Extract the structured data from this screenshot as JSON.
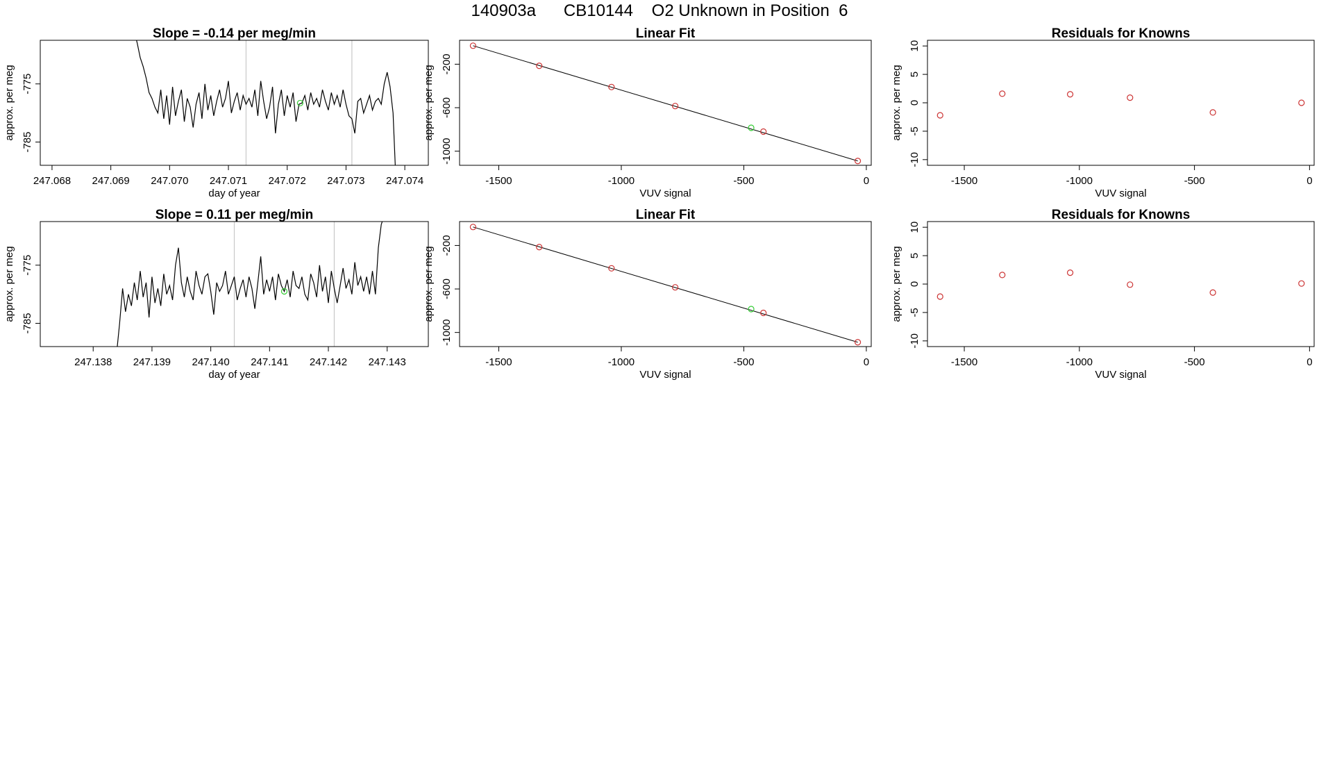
{
  "page": {
    "main_title": "140903a      CB10144    O2 Unknown in Position  6"
  },
  "chart_data": [
    {
      "id": "ts1",
      "type": "line",
      "title": "Slope =  -0.14  per meg/min",
      "xlabel": "day of year",
      "ylabel": "approx. per meg",
      "xlim": [
        247.0678,
        247.0744
      ],
      "ylim": [
        -789.0,
        -767.5
      ],
      "xticks": [
        247.068,
        247.069,
        247.07,
        247.071,
        247.072,
        247.073,
        247.074
      ],
      "xtick_labels": [
        "247.068",
        "247.069",
        "247.070",
        "247.071",
        "247.072",
        "247.073",
        "247.074"
      ],
      "yticks": [
        -785,
        -775
      ],
      "ytick_labels": [
        "-785",
        "-775"
      ],
      "vlines": [
        247.0713,
        247.0731
      ],
      "vline_color": "#c8c8c8",
      "highlight": {
        "x": 247.07222,
        "y": -778.3
      },
      "x": [
        247.0694,
        247.06945,
        247.0695,
        247.06955,
        247.0696,
        247.06965,
        247.0697,
        247.06975,
        247.0698,
        247.06985,
        247.0699,
        247.06995,
        247.07,
        247.07005,
        247.0701,
        247.07015,
        247.0702,
        247.07025,
        247.0703,
        247.07035,
        247.0704,
        247.07045,
        247.0705,
        247.07055,
        247.0706,
        247.07065,
        247.0707,
        247.07075,
        247.0708,
        247.07085,
        247.0709,
        247.07095,
        247.071,
        247.07105,
        247.0711,
        247.07115,
        247.0712,
        247.07125,
        247.0713,
        247.07135,
        247.0714,
        247.07145,
        247.0715,
        247.07155,
        247.0716,
        247.07165,
        247.0717,
        247.07175,
        247.0718,
        247.07185,
        247.0719,
        247.07195,
        247.072,
        247.07205,
        247.0721,
        247.07215,
        247.0722,
        247.07225,
        247.0723,
        247.07235,
        247.0724,
        247.07245,
        247.0725,
        247.07255,
        247.0726,
        247.07265,
        247.0727,
        247.07275,
        247.0728,
        247.07285,
        247.0729,
        247.07295,
        247.073,
        247.07305,
        247.0731,
        247.07315,
        247.0732,
        247.07325,
        247.0733,
        247.07335,
        247.0734,
        247.07345,
        247.0735,
        247.07355,
        247.0736,
        247.07365,
        247.0737,
        247.07375,
        247.0738,
        247.07385
      ],
      "y": [
        -766.0,
        -768.0,
        -770.5,
        -772.0,
        -774.0,
        -776.5,
        -777.5,
        -779.0,
        -780.0,
        -776.0,
        -781.0,
        -777.0,
        -782.0,
        -775.5,
        -780.5,
        -778.0,
        -776.0,
        -781.5,
        -777.5,
        -779.0,
        -782.5,
        -778.5,
        -776.5,
        -781.0,
        -775.0,
        -779.5,
        -777.0,
        -780.5,
        -778.0,
        -776.0,
        -779.0,
        -777.5,
        -774.5,
        -780.0,
        -778.0,
        -776.5,
        -779.5,
        -777.0,
        -778.5,
        -777.5,
        -779.0,
        -776.0,
        -780.5,
        -774.5,
        -778.0,
        -781.0,
        -779.0,
        -775.5,
        -783.5,
        -778.5,
        -776.0,
        -780.5,
        -777.0,
        -779.0,
        -776.5,
        -781.5,
        -778.5,
        -778.3,
        -777.0,
        -779.5,
        -776.5,
        -778.5,
        -777.5,
        -779.0,
        -776.0,
        -778.0,
        -779.5,
        -776.5,
        -778.5,
        -777.0,
        -779.0,
        -776.0,
        -778.5,
        -780.5,
        -781.0,
        -783.5,
        -778.0,
        -777.5,
        -780.0,
        -778.5,
        -777.0,
        -779.5,
        -778.0,
        -777.5,
        -778.5,
        -775.0,
        -773.0,
        -775.5,
        -780.0,
        -792.0
      ]
    },
    {
      "id": "fit1",
      "type": "scatter",
      "title": "Linear Fit",
      "xlabel": "VUV signal",
      "ylabel": "approx. per meg",
      "xlim": [
        -1660,
        20
      ],
      "ylim": [
        -1130,
        20
      ],
      "xticks": [
        -1500,
        -1000,
        -500,
        0
      ],
      "xtick_labels": [
        "-1500",
        "-1000",
        "-500",
        "0"
      ],
      "yticks": [
        -1000,
        -600,
        -200
      ],
      "ytick_labels": [
        "-1000",
        "-600",
        "-200"
      ],
      "fit_line": {
        "x": [
          -1605,
          -35
        ],
        "y": [
          -30,
          -1090
        ]
      },
      "points": {
        "x": [
          -1605,
          -1335,
          -1040,
          -780,
          -420,
          -35
        ],
        "y": [
          -30,
          -215,
          -410,
          -585,
          -820,
          -1090
        ]
      },
      "highlight": {
        "x": [
          -470
        ],
        "y": [
          -785
        ]
      },
      "point_color": "#cc3333",
      "highlight_color": "#33cc33"
    },
    {
      "id": "res1",
      "type": "scatter",
      "title": "Residuals for Knowns",
      "xlabel": "VUV signal",
      "ylabel": "approx. per meg",
      "xlim": [
        -1660,
        20
      ],
      "ylim": [
        -11,
        11
      ],
      "xticks": [
        -1500,
        -1000,
        -500,
        0
      ],
      "xtick_labels": [
        "-1500",
        "-1000",
        "-500",
        "0"
      ],
      "yticks": [
        -10,
        -5,
        0,
        5,
        10
      ],
      "ytick_labels": [
        "-10",
        "-5",
        "0",
        "5",
        "10"
      ],
      "points": {
        "x": [
          -1605,
          -1335,
          -1040,
          -780,
          -420,
          -35
        ],
        "y": [
          -2.2,
          1.6,
          1.5,
          0.9,
          -1.7,
          0.0
        ]
      },
      "point_color": "#cc3333"
    },
    {
      "id": "ts2",
      "type": "line",
      "title": "Slope =  0.11  per meg/min",
      "xlabel": "day of year",
      "ylabel": "approx. per meg",
      "xlim": [
        247.1371,
        247.1437
      ],
      "ylim": [
        -789.0,
        -767.5
      ],
      "xticks": [
        247.138,
        247.139,
        247.14,
        247.141,
        247.142,
        247.143
      ],
      "xtick_labels": [
        "247.138",
        "247.139",
        "247.140",
        "247.141",
        "247.142",
        "247.143"
      ],
      "yticks": [
        -785,
        -775
      ],
      "ytick_labels": [
        "-785",
        "-775"
      ],
      "vlines": [
        247.1404,
        247.1421
      ],
      "vline_color": "#c8c8c8",
      "highlight": {
        "x": [
          247.14125
        ],
        "y": [
          -779.5
        ]
      },
      "x": [
        247.1384,
        247.13845,
        247.1385,
        247.13855,
        247.1386,
        247.13865,
        247.1387,
        247.13875,
        247.1388,
        247.13885,
        247.1389,
        247.13895,
        247.139,
        247.13905,
        247.1391,
        247.13915,
        247.1392,
        247.13925,
        247.1393,
        247.13935,
        247.1394,
        247.13945,
        247.1395,
        247.13955,
        247.1396,
        247.13965,
        247.1397,
        247.13975,
        247.1398,
        247.13985,
        247.1399,
        247.13995,
        247.14,
        247.14005,
        247.1401,
        247.14015,
        247.1402,
        247.14025,
        247.1403,
        247.14035,
        247.1404,
        247.14045,
        247.1405,
        247.14055,
        247.1406,
        247.14065,
        247.1407,
        247.14075,
        247.1408,
        247.14085,
        247.1409,
        247.14095,
        247.141,
        247.14105,
        247.1411,
        247.14115,
        247.1412,
        247.14125,
        247.1413,
        247.14135,
        247.1414,
        247.14145,
        247.1415,
        247.14155,
        247.1416,
        247.14165,
        247.1417,
        247.14175,
        247.1418,
        247.14185,
        247.1419,
        247.14195,
        247.142,
        247.14205,
        247.1421,
        247.14215,
        247.1422,
        247.14225,
        247.1423,
        247.14235,
        247.1424,
        247.14245,
        247.1425,
        247.14255,
        247.1426,
        247.14265,
        247.1427,
        247.14275,
        247.1428,
        247.14285,
        247.1429,
        247.143
      ],
      "y": [
        -790.0,
        -785.0,
        -779.0,
        -783.0,
        -780.0,
        -782.0,
        -778.0,
        -781.0,
        -776.0,
        -780.5,
        -778.0,
        -784.0,
        -777.0,
        -781.5,
        -779.0,
        -782.0,
        -776.5,
        -780.0,
        -778.5,
        -781.0,
        -775.0,
        -772.0,
        -778.0,
        -780.5,
        -777.0,
        -779.5,
        -781.0,
        -776.0,
        -778.5,
        -780.0,
        -777.0,
        -776.5,
        -779.5,
        -783.5,
        -778.0,
        -779.5,
        -778.5,
        -776.0,
        -780.0,
        -778.5,
        -777.0,
        -781.0,
        -779.0,
        -777.5,
        -780.5,
        -777.0,
        -779.0,
        -782.5,
        -778.0,
        -773.5,
        -780.0,
        -777.5,
        -779.5,
        -777.0,
        -781.0,
        -776.5,
        -778.5,
        -779.5,
        -777.5,
        -780.5,
        -776.0,
        -778.5,
        -779.0,
        -777.0,
        -780.0,
        -781.0,
        -776.5,
        -778.0,
        -780.5,
        -775.0,
        -779.5,
        -777.0,
        -781.5,
        -776.0,
        -779.0,
        -781.5,
        -778.5,
        -775.5,
        -779.0,
        -777.5,
        -780.0,
        -774.5,
        -778.5,
        -777.0,
        -779.5,
        -777.0,
        -780.0,
        -776.0,
        -780.0,
        -772.0,
        -768.0,
        -765.0
      ]
    },
    {
      "id": "fit2",
      "type": "scatter",
      "title": "Linear Fit",
      "xlabel": "VUV signal",
      "ylabel": "approx. per meg",
      "xlim": [
        -1660,
        20
      ],
      "ylim": [
        -1130,
        20
      ],
      "xticks": [
        -1500,
        -1000,
        -500,
        0
      ],
      "xtick_labels": [
        "-1500",
        "-1000",
        "-500",
        "0"
      ],
      "yticks": [
        -1000,
        -600,
        -200
      ],
      "ytick_labels": [
        "-1000",
        "-600",
        "-200"
      ],
      "fit_line": {
        "x": [
          -1605,
          -35
        ],
        "y": [
          -30,
          -1090
        ]
      },
      "points": {
        "x": [
          -1605,
          -1335,
          -1040,
          -780,
          -420,
          -35
        ],
        "y": [
          -30,
          -215,
          -410,
          -585,
          -820,
          -1090
        ]
      },
      "highlight": {
        "x": [
          -470
        ],
        "y": [
          -785
        ]
      },
      "point_color": "#cc3333",
      "highlight_color": "#33cc33"
    },
    {
      "id": "res2",
      "type": "scatter",
      "title": "Residuals for Knowns",
      "xlabel": "VUV signal",
      "ylabel": "approx. per meg",
      "xlim": [
        -1660,
        20
      ],
      "ylim": [
        -11,
        11
      ],
      "xticks": [
        -1500,
        -1000,
        -500,
        0
      ],
      "xtick_labels": [
        "-1500",
        "-1000",
        "-500",
        "0"
      ],
      "yticks": [
        -10,
        -5,
        0,
        5,
        10
      ],
      "ytick_labels": [
        "-10",
        "-5",
        "0",
        "5",
        "10"
      ],
      "points": {
        "x": [
          -1605,
          -1335,
          -1040,
          -780,
          -420,
          -35
        ],
        "y": [
          -2.2,
          1.6,
          2.0,
          -0.1,
          -1.5,
          0.1
        ]
      },
      "point_color": "#cc3333"
    }
  ]
}
